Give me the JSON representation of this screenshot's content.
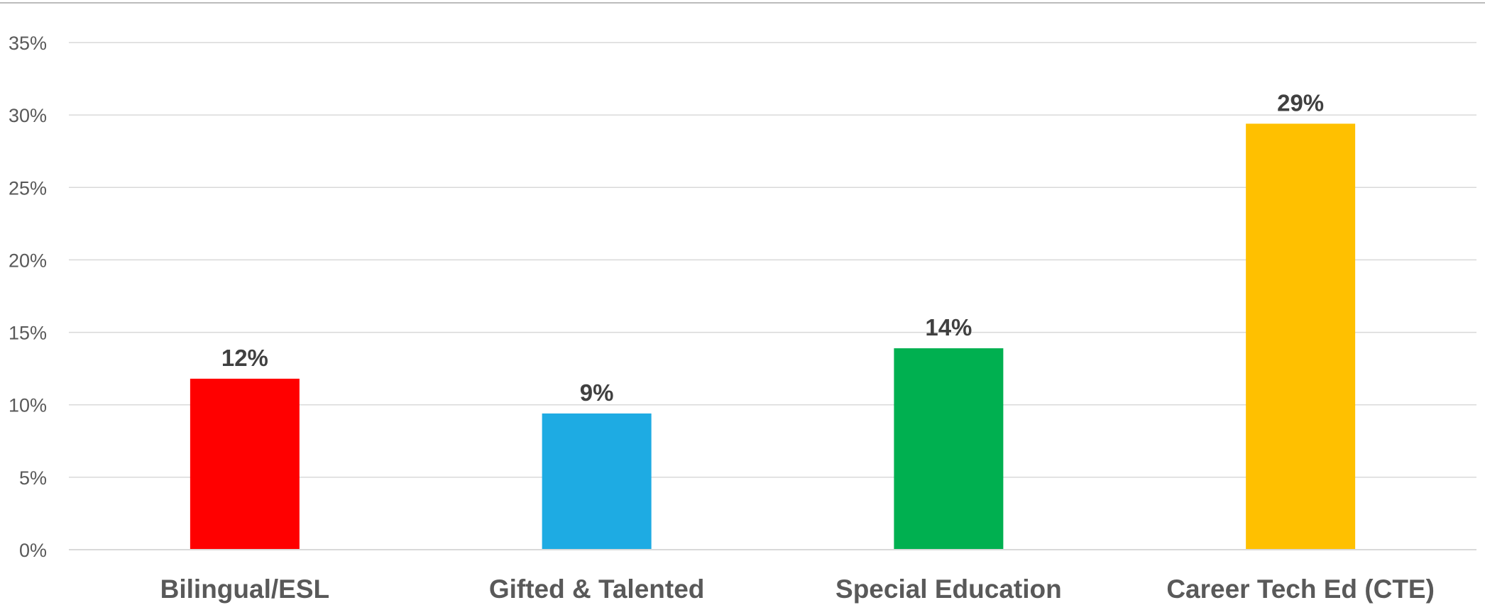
{
  "chart_data": {
    "type": "bar",
    "categories": [
      "Bilingual/ESL",
      "Gifted & Talented",
      "Special Education",
      "Career Tech Ed (CTE)"
    ],
    "values": [
      11.8,
      9.4,
      13.9,
      29.4
    ],
    "data_labels": [
      "12%",
      "9%",
      "14%",
      "29%"
    ],
    "colors": [
      "#FF0000",
      "#1EABE3",
      "#00B050",
      "#FFC000"
    ],
    "y_ticks": [
      0,
      5,
      10,
      15,
      20,
      25,
      30,
      35
    ],
    "y_tick_labels": [
      "0%",
      "5%",
      "10%",
      "15%",
      "20%",
      "25%",
      "30%",
      "35%"
    ],
    "ylim": [
      0,
      35
    ],
    "grid": true,
    "legend": "none"
  }
}
